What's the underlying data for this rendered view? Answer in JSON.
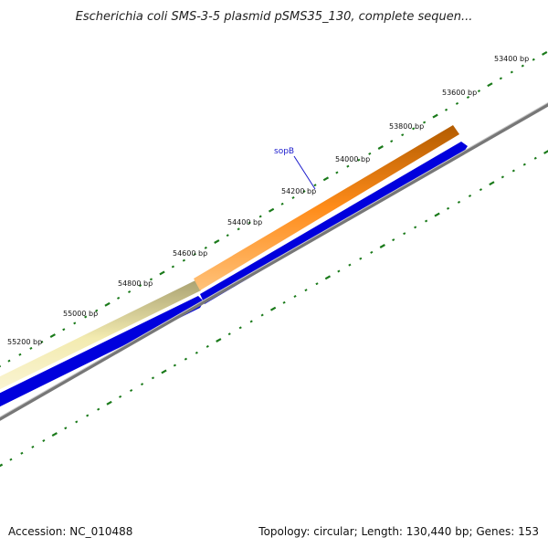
{
  "title": "Escherichia coli SMS-3-5 plasmid pSMS35_130, complete sequen...",
  "accession": "Accession: NC_010488",
  "summary": "Topology: circular; Length: 130,440 bp; Genes: 153",
  "tick_labels": [
    "53400 bp",
    "53600 bp",
    "53800 bp",
    "54000 bp",
    "54200 bp",
    "54400 bp",
    "54600 bp",
    "54800 bp",
    "55000 bp",
    "55200 bp"
  ],
  "genes": [
    {
      "name": "sopB",
      "color": "#ff8c00"
    }
  ],
  "colors": {
    "backbone": "#777777",
    "cds": "#0000dd",
    "gene_highlight": "#ff8c00",
    "gene_light": "#f0e6a0",
    "ticks": "#1a7a1a"
  }
}
